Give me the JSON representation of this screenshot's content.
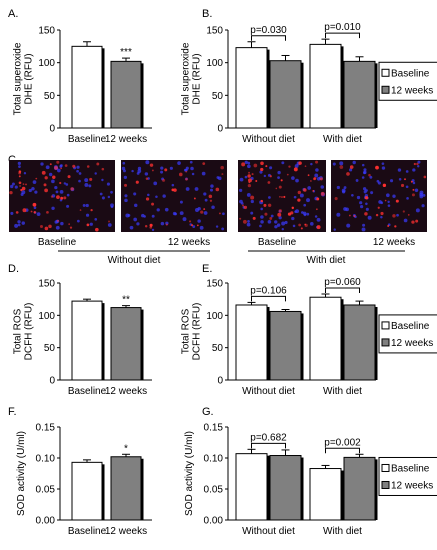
{
  "colors": {
    "baseline_fill": "#ffffff",
    "week12_fill": "#808080",
    "bar_stroke": "#000000",
    "micro_bg": "#1a0a14",
    "micro_nucleus": "#3a3aff",
    "micro_ros": "#ff3030"
  },
  "panel_c": {
    "label": "C.",
    "images": [
      {
        "caption": "Baseline",
        "intensity": 0.55
      },
      {
        "caption": "12 weeks",
        "intensity": 0.35
      },
      {
        "caption": "Baseline",
        "intensity": 0.65
      },
      {
        "caption": "12 weeks",
        "intensity": 0.35
      }
    ],
    "group_labels": [
      "Without diet",
      "With diet"
    ]
  },
  "chart_data": [
    {
      "panel": "A.",
      "type": "bar",
      "ylabel": "Total superoxide\nDHE (RFU)",
      "ylim": [
        0,
        150
      ],
      "yticks": [
        "0",
        "50",
        "100",
        "150"
      ],
      "categories": [
        "Baseline",
        "12 weeks"
      ],
      "values": [
        125,
        102
      ],
      "errors": [
        7,
        5
      ],
      "significance": [
        "",
        "***"
      ]
    },
    {
      "panel": "B.",
      "type": "bar",
      "ylabel": "Total superoxide\nDHE (RFU)",
      "ylim": [
        0,
        150
      ],
      "yticks": [
        "0",
        "50",
        "100",
        "150"
      ],
      "categories": [
        "Without diet",
        "With diet"
      ],
      "series": [
        {
          "name": "Baseline",
          "values": [
            123,
            128
          ],
          "errors": [
            9,
            8
          ]
        },
        {
          "name": "12 weeks",
          "values": [
            103,
            102
          ],
          "errors": [
            8,
            7
          ]
        }
      ],
      "pvalues": [
        "p=0.030",
        "p=0.010"
      ],
      "legend": "right"
    },
    {
      "panel": "D.",
      "type": "bar",
      "ylabel": "Total ROS\nDCFH (RFU)",
      "ylim": [
        0,
        150
      ],
      "yticks": [
        "0",
        "50",
        "100",
        "150"
      ],
      "categories": [
        "Baseline",
        "12 weeks"
      ],
      "values": [
        122,
        112
      ],
      "errors": [
        3,
        3
      ],
      "significance": [
        "",
        "**"
      ]
    },
    {
      "panel": "E.",
      "type": "bar",
      "ylabel": "Total ROS\nDCFH (RFU)",
      "ylim": [
        0,
        150
      ],
      "yticks": [
        "0",
        "50",
        "100",
        "150"
      ],
      "categories": [
        "Without diet",
        "With diet"
      ],
      "series": [
        {
          "name": "Baseline",
          "values": [
            116,
            128
          ],
          "errors": [
            4,
            5
          ]
        },
        {
          "name": "12 weeks",
          "values": [
            106,
            116
          ],
          "errors": [
            3,
            6
          ]
        }
      ],
      "pvalues": [
        "p=0.106",
        "p=0.060"
      ],
      "legend": "right"
    },
    {
      "panel": "F.",
      "type": "bar",
      "ylabel": "SOD activity (U/ml)",
      "ylim": [
        0,
        0.15
      ],
      "yticks": [
        "0.00",
        "0.05",
        "0.10",
        "0.15"
      ],
      "categories": [
        "Baseline",
        "12 weeks"
      ],
      "values": [
        0.093,
        0.102
      ],
      "errors": [
        0.004,
        0.004
      ],
      "significance": [
        "",
        "*"
      ]
    },
    {
      "panel": "G.",
      "type": "bar",
      "ylabel": "SOD activity (U/ml)",
      "ylim": [
        0,
        0.15
      ],
      "yticks": [
        "0.00",
        "0.05",
        "0.10",
        "0.15"
      ],
      "categories": [
        "Without diet",
        "With diet"
      ],
      "series": [
        {
          "name": "Baseline",
          "values": [
            0.107,
            0.083
          ],
          "errors": [
            0.007,
            0.005
          ]
        },
        {
          "name": "12 weeks",
          "values": [
            0.104,
            0.101
          ],
          "errors": [
            0.009,
            0.005
          ]
        }
      ],
      "pvalues": [
        "p=0.682",
        "p=0.002"
      ],
      "legend": "right"
    }
  ]
}
